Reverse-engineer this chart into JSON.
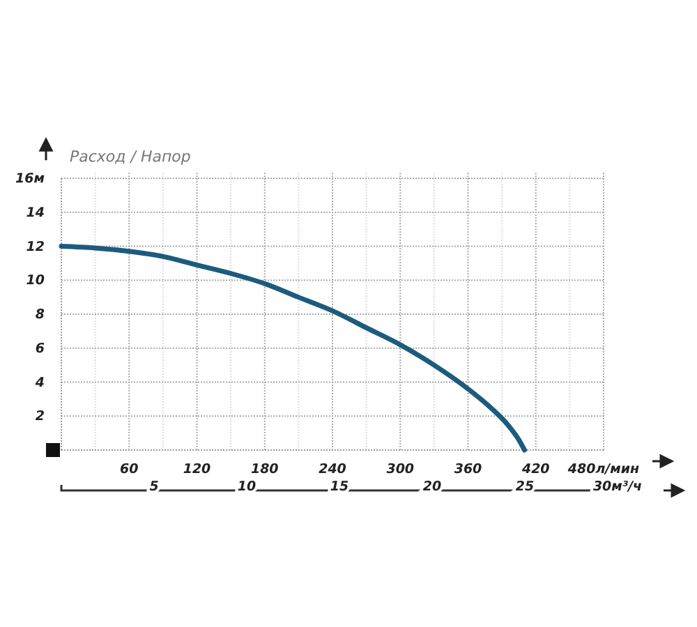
{
  "chart_data": {
    "type": "line",
    "ylabel": "Расход / Напор",
    "x": [
      0,
      30,
      60,
      90,
      120,
      150,
      180,
      210,
      240,
      270,
      300,
      330,
      360,
      380,
      395,
      405,
      410
    ],
    "series": [
      {
        "color": "#1d5b7e",
        "values": [
          12.0,
          11.9,
          11.7,
          11.4,
          10.9,
          10.4,
          9.8,
          9.0,
          8.2,
          7.2,
          6.2,
          5.0,
          3.6,
          2.5,
          1.5,
          0.6,
          0
        ]
      }
    ],
    "xlim": [
      0,
      480
    ],
    "ylim": [
      0,
      16
    ],
    "xticks": [
      {
        "value": 30,
        "label": null
      },
      60,
      {
        "value": 90,
        "label": null
      },
      120,
      {
        "value": 150,
        "label": null
      },
      180,
      {
        "value": 210,
        "label": null
      },
      240,
      {
        "value": 270,
        "label": null
      },
      300,
      {
        "value": 330,
        "label": null
      },
      360,
      {
        "value": 390,
        "label": null
      },
      420,
      {
        "value": 450,
        "label": null
      },
      {
        "value": 480,
        "label": "480л/мин"
      }
    ],
    "yticks": [
      2,
      4,
      6,
      8,
      10,
      12,
      14,
      {
        "value": 16,
        "label": "16м"
      }
    ],
    "x2lim": [
      0,
      30
    ],
    "x2ticks": [
      5,
      10,
      15,
      20,
      25,
      {
        "value": 30,
        "label": "30м³/ч"
      }
    ],
    "grid": true,
    "marker": "none",
    "line_style": "solid"
  }
}
